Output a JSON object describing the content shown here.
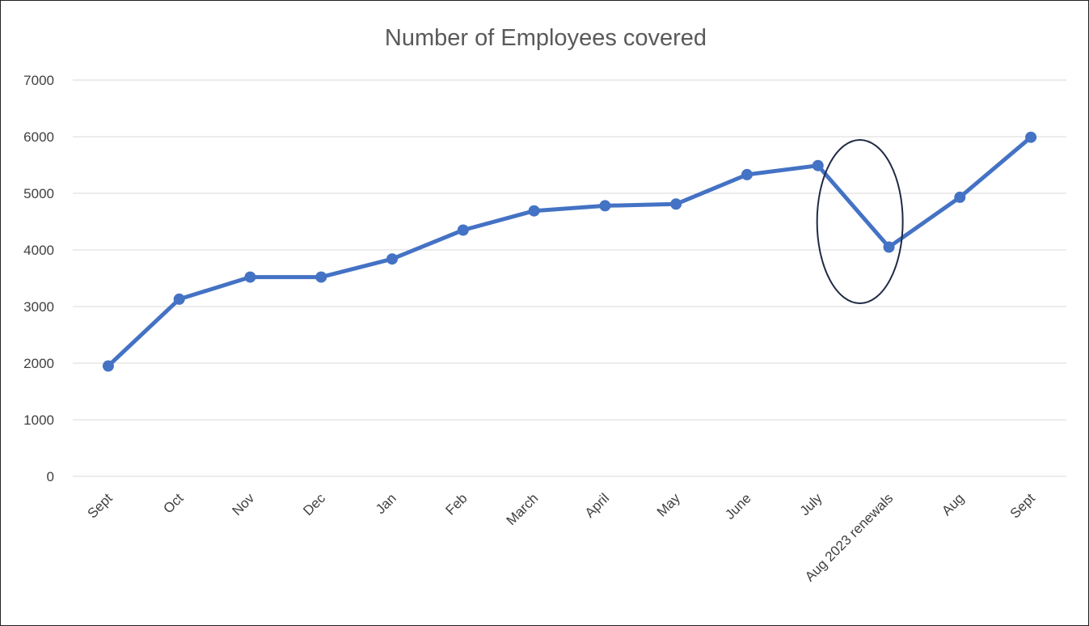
{
  "chart_data": {
    "type": "line",
    "title": "Number of Employees covered",
    "xlabel": "",
    "ylabel": "",
    "categories": [
      "Sept",
      "Oct",
      "Nov",
      "Dec",
      "Jan",
      "Feb",
      "March",
      "April",
      "May",
      "June",
      "July",
      "Aug 2023 renewals",
      "Aug",
      "Sept"
    ],
    "series": [
      {
        "values": [
          1950,
          3130,
          3520,
          3520,
          3840,
          4350,
          4690,
          4780,
          4810,
          5330,
          5490,
          4050,
          4930,
          5990
        ],
        "color": "#4472C4"
      }
    ],
    "ylim": [
      0,
      7000
    ],
    "yticks": [
      0,
      1000,
      2000,
      3000,
      4000,
      5000,
      6000,
      7000
    ],
    "grid": true,
    "legend": "none",
    "annotation": {
      "shape": "ellipse",
      "highlights": "Aug 2023 renewals",
      "color": "#1f2a44"
    }
  }
}
